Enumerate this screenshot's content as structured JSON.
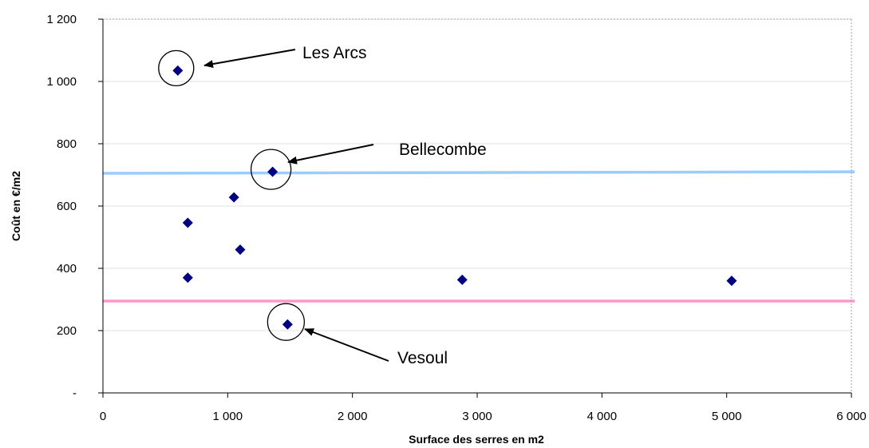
{
  "chart_data": {
    "type": "scatter",
    "title": "",
    "xlabel": "Surface des serres en m2",
    "ylabel": "Coût en €/m2",
    "xlim": [
      0,
      6000
    ],
    "ylim": [
      0,
      1200
    ],
    "x_ticks": [
      0,
      1000,
      2000,
      3000,
      4000,
      5000,
      6000
    ],
    "x_tick_labels": [
      "0",
      "1 000",
      "2 000",
      "3 000",
      "4 000",
      "5 000",
      "6 000"
    ],
    "y_ticks": [
      0,
      200,
      400,
      600,
      800,
      1000,
      1200
    ],
    "y_tick_labels": [
      "-",
      "200",
      "400",
      "600",
      "800",
      "1 000",
      "1 200"
    ],
    "grid": "horizontal",
    "marker_color": "#000080",
    "points": [
      {
        "x": 600,
        "y": 1035
      },
      {
        "x": 1050,
        "y": 628
      },
      {
        "x": 680,
        "y": 546
      },
      {
        "x": 1100,
        "y": 460
      },
      {
        "x": 680,
        "y": 370
      },
      {
        "x": 1360,
        "y": 710
      },
      {
        "x": 1480,
        "y": 220
      },
      {
        "x": 2880,
        "y": 363
      },
      {
        "x": 5040,
        "y": 360
      }
    ],
    "reference_lines": [
      {
        "color": "#99CCFF",
        "y_start": 705,
        "y_end": 710
      },
      {
        "color": "#FF99CC",
        "y_start": 295,
        "y_end": 295
      }
    ],
    "annotations": [
      {
        "label": "Les Arcs",
        "point_index": 0
      },
      {
        "label": "Bellecombe",
        "point_index": 5
      },
      {
        "label": "Vesoul",
        "point_index": 6
      }
    ]
  }
}
